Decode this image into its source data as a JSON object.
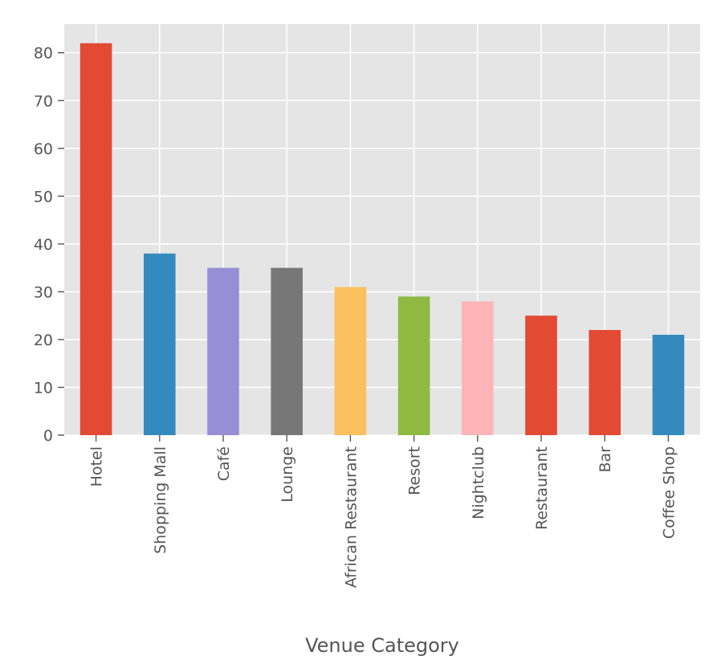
{
  "chart_data": {
    "type": "bar",
    "title": "",
    "xlabel": "Venue Category",
    "ylabel": "",
    "categories": [
      "Hotel",
      "Shopping Mall",
      "Café",
      "Lounge",
      "African Restaurant",
      "Resort",
      "Nightclub",
      "Restaurant",
      "Bar",
      "Coffee Shop"
    ],
    "values": [
      82,
      38,
      35,
      35,
      31,
      29,
      28,
      25,
      22,
      21
    ],
    "colors": [
      "#E24A33",
      "#348ABD",
      "#988ED5",
      "#777777",
      "#FBC15E",
      "#8EBA42",
      "#FFB5B8",
      "#E24A33",
      "#E24A33",
      "#348ABD"
    ],
    "ylim": [
      0,
      86
    ],
    "yticks": [
      0,
      10,
      20,
      30,
      40,
      50,
      60,
      70,
      80
    ],
    "grid": true,
    "legend": "none",
    "style": {
      "background": "#E5E5E5",
      "grid_color": "#FFFFFF",
      "tick_label_color": "#555555"
    }
  }
}
